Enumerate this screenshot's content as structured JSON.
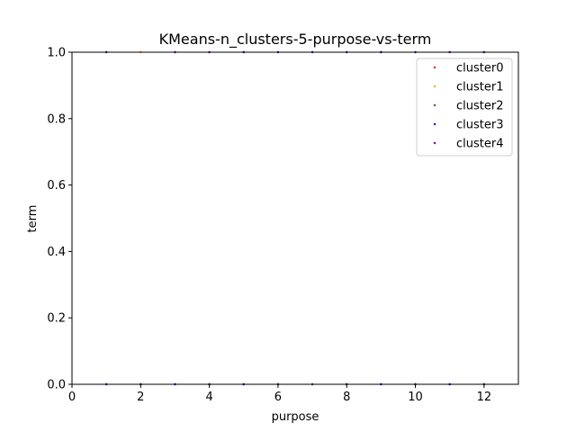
{
  "chart_data": {
    "type": "scatter",
    "title": "KMeans-n_clusters-5-purpose-vs-term",
    "xlabel": "purpose",
    "ylabel": "term",
    "xlim": [
      0,
      13
    ],
    "ylim": [
      0,
      1
    ],
    "xticks": [
      0,
      2,
      4,
      6,
      8,
      10,
      12
    ],
    "yticks": [
      0.0,
      0.2,
      0.4,
      0.6,
      0.8,
      1.0
    ],
    "xtick_labels": [
      "0",
      "2",
      "4",
      "6",
      "8",
      "10",
      "12"
    ],
    "ytick_labels": [
      "0.0",
      "0.2",
      "0.4",
      "0.6",
      "0.8",
      "1.0"
    ],
    "grid": false,
    "legend_position": "top-right",
    "series": [
      {
        "name": "cluster0",
        "color": "#ff0000",
        "points": [
          [
            1,
            0
          ],
          [
            2,
            0
          ],
          [
            3,
            0
          ],
          [
            4,
            0
          ],
          [
            5,
            0
          ],
          [
            6,
            0
          ],
          [
            7,
            0
          ],
          [
            8,
            0
          ],
          [
            9,
            0
          ],
          [
            10,
            0
          ],
          [
            11,
            0
          ],
          [
            12,
            0
          ]
        ]
      },
      {
        "name": "cluster1",
        "color": "#ffa500",
        "points": [
          [
            2,
            1
          ],
          [
            6,
            1
          ],
          [
            8,
            1
          ],
          [
            10,
            1
          ]
        ]
      },
      {
        "name": "cluster2",
        "color": "#008000",
        "points": [
          [
            7,
            0
          ],
          [
            9,
            1
          ],
          [
            12,
            0
          ]
        ]
      },
      {
        "name": "cluster3",
        "color": "#0000ff",
        "points": [
          [
            1,
            1
          ],
          [
            3,
            1
          ],
          [
            4,
            1
          ],
          [
            5,
            1
          ],
          [
            6,
            1
          ],
          [
            7,
            1
          ],
          [
            8,
            1
          ],
          [
            9,
            1
          ],
          [
            10,
            1
          ],
          [
            11,
            1
          ],
          [
            12,
            1
          ],
          [
            1,
            0
          ],
          [
            2,
            0
          ],
          [
            3,
            0
          ],
          [
            4,
            0
          ],
          [
            5,
            0
          ],
          [
            6,
            0
          ],
          [
            8,
            0
          ],
          [
            9,
            0
          ],
          [
            10,
            0
          ],
          [
            11,
            0
          ]
        ]
      },
      {
        "name": "cluster4",
        "color": "#800080",
        "points": [
          [
            1,
            1
          ],
          [
            3,
            1
          ],
          [
            4,
            1
          ],
          [
            5,
            1
          ],
          [
            7,
            1
          ],
          [
            11,
            1
          ],
          [
            12,
            1
          ],
          [
            2,
            0
          ],
          [
            4,
            0
          ],
          [
            6,
            0
          ],
          [
            8,
            0
          ],
          [
            10,
            0
          ],
          [
            12,
            0
          ]
        ]
      }
    ]
  }
}
